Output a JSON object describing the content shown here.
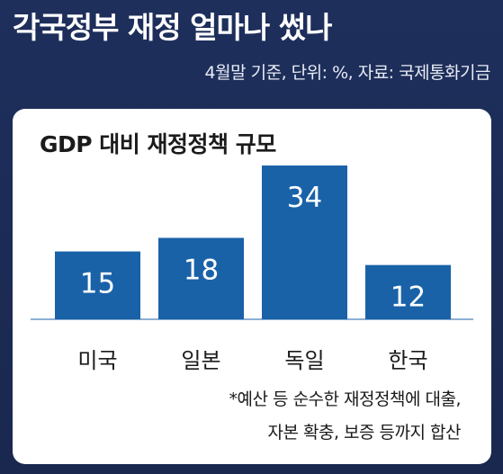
{
  "header": {
    "title": "각국정부 재정 얼마나 썼나",
    "subtitle": "4월말 기준, 단위: %, 자료: 국제통화기금"
  },
  "footnote": {
    "line1": "*예산 등 순수한 재정정책에 대출,",
    "line2": "자본 확충, 보증 등까지 합산"
  },
  "colors": {
    "background": "#1e2f5c",
    "bar": "#1a62a8",
    "bar_label": "#ffffff"
  },
  "chart_data": {
    "type": "bar",
    "title": "GDP 대비 재정정책 규모",
    "categories": [
      "미국",
      "일본",
      "독일",
      "한국"
    ],
    "values": [
      15,
      18,
      34,
      12
    ],
    "ylim": [
      0,
      34
    ],
    "grid": false,
    "legend": "none"
  }
}
